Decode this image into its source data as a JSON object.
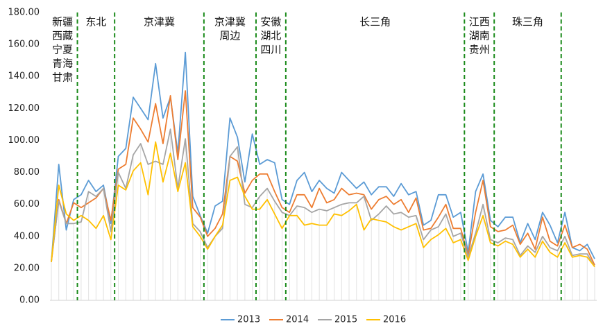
{
  "chart_data": {
    "type": "line",
    "categories": [
      null,
      null,
      null,
      null,
      null,
      null,
      null,
      null,
      null,
      null,
      null,
      null,
      null,
      null,
      null,
      null,
      null,
      null,
      null,
      null,
      null,
      null,
      null,
      null,
      null,
      null,
      null,
      null,
      null,
      null,
      null,
      null,
      null,
      null,
      null,
      null,
      null,
      null,
      null,
      null,
      null,
      null,
      null,
      null,
      null,
      null,
      null,
      null,
      null,
      null,
      null,
      null,
      null,
      null,
      null,
      null,
      null,
      null,
      null,
      null,
      null,
      null,
      null,
      null,
      null,
      null,
      null,
      null,
      null,
      null,
      null,
      null,
      null,
      null
    ],
    "series": [
      {
        "name": "2013",
        "color": "#5b9bd5",
        "values": [
          24,
          85,
          44,
          63,
          66,
          75,
          68,
          72,
          48,
          90,
          95,
          127,
          120,
          113,
          148,
          114,
          127,
          92,
          155,
          65,
          53,
          42,
          59,
          62,
          114,
          102,
          74,
          104,
          85,
          88,
          86,
          63,
          60,
          75,
          80,
          68,
          75,
          70,
          67,
          80,
          75,
          70,
          74,
          66,
          71,
          71,
          65,
          73,
          66,
          68,
          47,
          50,
          66,
          66,
          52,
          55,
          30,
          68,
          79,
          50,
          46,
          52,
          52,
          36,
          48,
          38,
          55,
          47,
          36,
          55,
          33,
          31,
          35,
          26
        ]
      },
      {
        "name": "2014",
        "color": "#ed7d31",
        "values": [
          24,
          63,
          48,
          61,
          58,
          61,
          64,
          70,
          50,
          82,
          85,
          114,
          107,
          99,
          123,
          98,
          128,
          88,
          131,
          58,
          52,
          40,
          45,
          54,
          90,
          87,
          67,
          75,
          79,
          79,
          68,
          58,
          55,
          66,
          66,
          58,
          70,
          61,
          63,
          70,
          66,
          67,
          66,
          57,
          63,
          65,
          60,
          63,
          55,
          64,
          44,
          45,
          52,
          60,
          45,
          45,
          28,
          55,
          75,
          46,
          43,
          44,
          47,
          35,
          42,
          32,
          52,
          37,
          34,
          47,
          33,
          35,
          32,
          22
        ]
      },
      {
        "name": "2015",
        "color": "#a5a5a5",
        "values": [
          25,
          62,
          48,
          48,
          49,
          68,
          65,
          70,
          43,
          80,
          70,
          91,
          98,
          85,
          87,
          85,
          107,
          70,
          101,
          48,
          43,
          33,
          40,
          45,
          90,
          96,
          60,
          58,
          65,
          70,
          62,
          55,
          53,
          59,
          58,
          55,
          57,
          56,
          58,
          60,
          61,
          61,
          65,
          50,
          54,
          59,
          54,
          55,
          52,
          53,
          38,
          44,
          46,
          54,
          40,
          42,
          27,
          42,
          60,
          38,
          36,
          39,
          38,
          28,
          34,
          30,
          40,
          33,
          31,
          40,
          28,
          29,
          29,
          21
        ]
      },
      {
        "name": "2016",
        "color": "#ffc000",
        "values": [
          24,
          72,
          54,
          50,
          53,
          50,
          45,
          53,
          38,
          72,
          69,
          81,
          86,
          66,
          99,
          74,
          92,
          68,
          86,
          46,
          40,
          32,
          40,
          47,
          75,
          77,
          65,
          57,
          57,
          63,
          54,
          45,
          53,
          53,
          47,
          48,
          47,
          47,
          54,
          53,
          56,
          60,
          44,
          51,
          50,
          49,
          46,
          44,
          46,
          48,
          33,
          38,
          41,
          45,
          36,
          38,
          25,
          40,
          53,
          36,
          34,
          37,
          35,
          27,
          32,
          27,
          37,
          30,
          27,
          36,
          27,
          28,
          27,
          21
        ]
      }
    ],
    "ylim": [
      0,
      180
    ],
    "yticks": [
      {
        "value": 0,
        "label": "0.00"
      },
      {
        "value": 20,
        "label": "20.00"
      },
      {
        "value": 40,
        "label": "40.00"
      },
      {
        "value": 60,
        "label": "60.00"
      },
      {
        "value": 80,
        "label": "80.00"
      },
      {
        "value": 100,
        "label": "100.00"
      },
      {
        "value": 120,
        "label": "120.00"
      },
      {
        "value": 140,
        "label": "140.00"
      },
      {
        "value": 160,
        "label": "160.00"
      },
      {
        "value": 180,
        "label": "180.00"
      }
    ],
    "regions": [
      {
        "label": [
          "新疆",
          "西藏",
          "宁夏",
          "青海",
          "甘肃"
        ],
        "start": 0,
        "end": 3
      },
      {
        "label": [
          "东北"
        ],
        "start": 4,
        "end": 8
      },
      {
        "label": [
          "京津冀"
        ],
        "start": 9,
        "end": 20
      },
      {
        "label": [
          "京津冀",
          "周边"
        ],
        "start": 21,
        "end": 27
      },
      {
        "label": [
          "安徽",
          "湖北",
          "四川"
        ],
        "start": 28,
        "end": 31
      },
      {
        "label": [
          "长三角"
        ],
        "start": 32,
        "end": 55
      },
      {
        "label": [
          "江西",
          "湖南",
          "贵州"
        ],
        "start": 56,
        "end": 59
      },
      {
        "label": [
          "珠三角"
        ],
        "start": 60,
        "end": 68
      }
    ],
    "separator_color": "#1a8a1a",
    "legend": "bottom"
  }
}
